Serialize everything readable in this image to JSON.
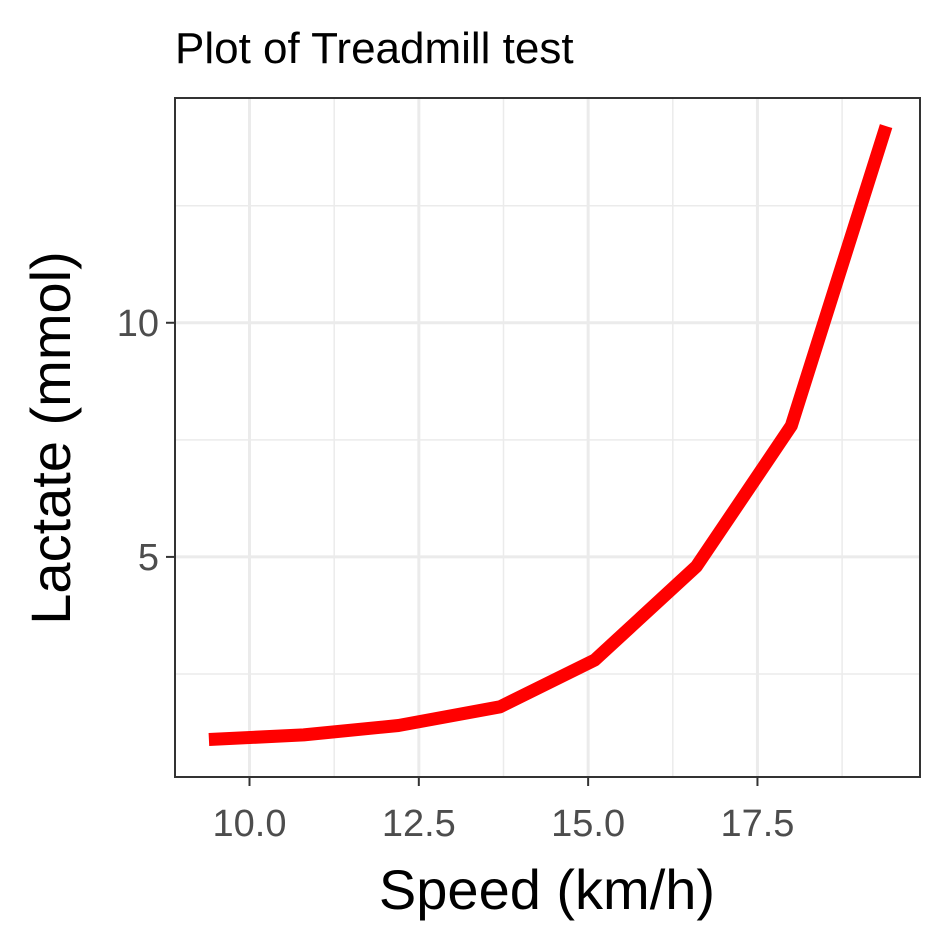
{
  "chart_data": {
    "type": "line",
    "title": "Plot of Treadmill test",
    "xlabel": "Speed (km/h)",
    "ylabel": "Lactate (mmol)",
    "xlim": [
      8.9,
      19.9
    ],
    "ylim": [
      0.3,
      14.8
    ],
    "x_ticks": [
      10.0,
      12.5,
      15.0,
      17.5
    ],
    "x_tick_labels": [
      "10.0",
      "12.5",
      "15.0",
      "17.5"
    ],
    "y_ticks": [
      5,
      10
    ],
    "y_tick_labels": [
      "5",
      "10"
    ],
    "grid": true,
    "series": [
      {
        "color": "#ff0000",
        "x": [
          9.4,
          10.8,
          12.2,
          13.7,
          15.1,
          16.6,
          18.0,
          19.4
        ],
        "y": [
          1.1,
          1.2,
          1.4,
          1.8,
          2.8,
          4.8,
          7.8,
          14.2
        ]
      }
    ]
  }
}
